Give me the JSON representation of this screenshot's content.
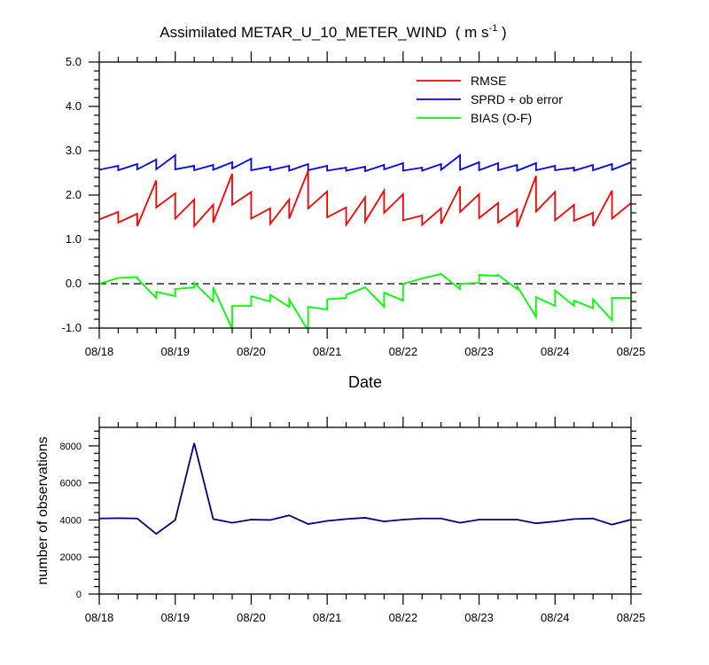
{
  "chart_data": [
    {
      "type": "line",
      "title": "Assimilated METAR_U_10_METER_WIND",
      "title_units": {
        "open": "( m s",
        "superscript": "-1",
        "close": " )"
      },
      "xlabel": "Date",
      "ylabel": "",
      "xlim": [
        0,
        7
      ],
      "ylim": [
        -1.0,
        5.0
      ],
      "y_ticks": [
        -1.0,
        0.0,
        1.0,
        2.0,
        3.0,
        4.0,
        5.0
      ],
      "y_tick_labels": [
        "-1.0",
        "0.0",
        "1.0",
        "2.0",
        "3.0",
        "4.0",
        "5.0"
      ],
      "x_ticks": [
        0,
        1,
        2,
        3,
        4,
        5,
        6,
        7
      ],
      "x_tick_labels": [
        "08/18",
        "08/19",
        "08/20",
        "08/21",
        "08/22",
        "08/23",
        "08/24",
        "08/25"
      ],
      "zero_line": 0.0,
      "legend": {
        "placement": "top-right",
        "entries": [
          "RMSE",
          "SPRD + ob error",
          "BIAS (O-F)"
        ]
      },
      "series": [
        {
          "name": "RMSE",
          "color": "#ff0000",
          "x": [
            0,
            0.25,
            0.25,
            0.5,
            0.5,
            0.75,
            0.75,
            1.0,
            1.0,
            1.25,
            1.25,
            1.5,
            1.5,
            1.75,
            1.75,
            2.0,
            2.0,
            2.25,
            2.25,
            2.5,
            2.5,
            2.75,
            2.75,
            3.0,
            3.0,
            3.25,
            3.25,
            3.5,
            3.5,
            3.75,
            3.75,
            4.0,
            4.0,
            4.25,
            4.25,
            4.5,
            4.5,
            4.75,
            4.75,
            5.0,
            5.0,
            5.25,
            5.25,
            5.5,
            5.5,
            5.75,
            5.75,
            6.0,
            6.0,
            6.25,
            6.25,
            6.5,
            6.5,
            6.75,
            6.75,
            7.0
          ],
          "values": [
            1.45,
            1.62,
            1.38,
            1.58,
            1.3,
            2.33,
            1.72,
            2.04,
            1.47,
            1.9,
            1.3,
            1.78,
            1.38,
            2.48,
            1.78,
            2.07,
            1.47,
            1.7,
            1.35,
            1.9,
            1.47,
            2.55,
            1.7,
            2.08,
            1.5,
            1.72,
            1.33,
            1.95,
            1.4,
            2.1,
            1.6,
            2.02,
            1.43,
            1.54,
            1.33,
            1.7,
            1.35,
            2.2,
            1.62,
            2.02,
            1.48,
            1.82,
            1.38,
            1.68,
            1.28,
            2.43,
            1.63,
            2.07,
            1.43,
            1.78,
            1.42,
            1.6,
            1.3,
            2.1,
            1.47,
            1.82
          ]
        },
        {
          "name": "SPRD + ob error",
          "color": "#0000ff",
          "x": [
            0,
            0.25,
            0.25,
            0.5,
            0.5,
            0.75,
            0.75,
            1.0,
            1.0,
            1.25,
            1.25,
            1.5,
            1.5,
            1.75,
            1.75,
            2.0,
            2.0,
            2.25,
            2.25,
            2.5,
            2.5,
            2.75,
            2.75,
            3.0,
            3.0,
            3.25,
            3.25,
            3.5,
            3.5,
            3.75,
            3.75,
            4.0,
            4.0,
            4.25,
            4.25,
            4.5,
            4.5,
            4.75,
            4.75,
            5.0,
            5.0,
            5.25,
            5.25,
            5.5,
            5.5,
            5.75,
            5.75,
            6.0,
            6.0,
            6.25,
            6.25,
            6.5,
            6.5,
            6.75,
            6.75,
            7.0
          ],
          "values": [
            2.57,
            2.66,
            2.56,
            2.7,
            2.58,
            2.8,
            2.58,
            2.9,
            2.58,
            2.66,
            2.56,
            2.68,
            2.57,
            2.74,
            2.6,
            2.82,
            2.56,
            2.64,
            2.56,
            2.66,
            2.55,
            2.7,
            2.56,
            2.66,
            2.55,
            2.62,
            2.55,
            2.64,
            2.54,
            2.68,
            2.58,
            2.72,
            2.55,
            2.62,
            2.55,
            2.7,
            2.57,
            2.9,
            2.57,
            2.74,
            2.56,
            2.72,
            2.56,
            2.68,
            2.55,
            2.72,
            2.56,
            2.66,
            2.56,
            2.62,
            2.55,
            2.68,
            2.56,
            2.7,
            2.57,
            2.74
          ]
        },
        {
          "name": "BIAS (O-F)",
          "color": "#00ff00",
          "x": [
            0,
            0.25,
            0.5,
            0.5,
            0.75,
            0.75,
            1.0,
            1.0,
            1.25,
            1.25,
            1.5,
            1.5,
            1.75,
            1.75,
            2.0,
            2.0,
            2.25,
            2.25,
            2.5,
            2.5,
            2.75,
            2.75,
            3.0,
            3.0,
            3.25,
            3.25,
            3.5,
            3.5,
            3.75,
            3.75,
            4.0,
            4.0,
            4.25,
            4.5,
            4.75,
            4.75,
            5.0,
            5.0,
            5.25,
            5.25,
            5.5,
            5.5,
            5.75,
            5.75,
            6.0,
            6.0,
            6.25,
            6.25,
            6.5,
            6.5,
            6.75,
            6.75,
            7.0
          ],
          "values": [
            0.0,
            0.13,
            0.15,
            0.12,
            -0.32,
            -0.18,
            -0.28,
            -0.12,
            -0.08,
            0.02,
            -0.4,
            -0.08,
            -1.02,
            -0.5,
            -0.5,
            -0.28,
            -0.4,
            -0.25,
            -0.52,
            -0.35,
            -1.06,
            -0.52,
            -0.58,
            -0.35,
            -0.32,
            -0.25,
            -0.08,
            -0.08,
            -0.52,
            -0.2,
            -0.38,
            0.0,
            0.12,
            0.22,
            -0.12,
            0.0,
            0.02,
            0.2,
            0.18,
            0.2,
            -0.12,
            -0.05,
            -0.75,
            -0.3,
            -0.5,
            -0.15,
            -0.5,
            -0.38,
            -0.55,
            -0.35,
            -0.82,
            -0.32,
            -0.32
          ]
        }
      ]
    },
    {
      "type": "line",
      "title": "",
      "xlabel": "",
      "ylabel": "number of observations",
      "xlim": [
        0,
        7
      ],
      "ylim": [
        0,
        9000
      ],
      "y_ticks": [
        0,
        2000,
        4000,
        6000,
        8000
      ],
      "y_tick_labels": [
        "0",
        "2000",
        "4000",
        "6000",
        "8000"
      ],
      "x_ticks": [
        0,
        1,
        2,
        3,
        4,
        5,
        6,
        7
      ],
      "x_tick_labels": [
        "08/18",
        "08/19",
        "08/20",
        "08/21",
        "08/22",
        "08/23",
        "08/24",
        "08/25"
      ],
      "series": [
        {
          "name": "number of observations",
          "color": "#000080",
          "x": [
            0,
            0.25,
            0.5,
            0.75,
            1.0,
            1.25,
            1.5,
            1.75,
            2.0,
            2.25,
            2.5,
            2.75,
            3.0,
            3.25,
            3.5,
            3.75,
            4.0,
            4.25,
            4.5,
            4.75,
            5.0,
            5.25,
            5.5,
            5.75,
            6.0,
            6.25,
            6.5,
            6.75,
            7.0
          ],
          "values": [
            4080,
            4100,
            4080,
            3250,
            4000,
            8150,
            4050,
            3850,
            4020,
            4000,
            4250,
            3780,
            3950,
            4050,
            4120,
            3920,
            4020,
            4080,
            4080,
            3850,
            4020,
            4020,
            4020,
            3820,
            3920,
            4050,
            4080,
            3750,
            4020
          ]
        }
      ]
    }
  ]
}
